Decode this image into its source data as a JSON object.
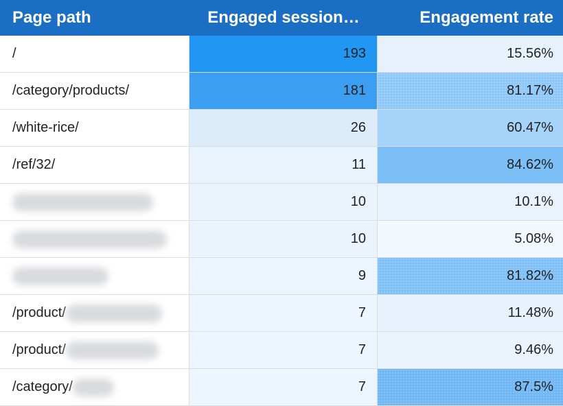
{
  "table": {
    "headers": {
      "page_path": "Page path",
      "engaged_sessions": "Engaged session…",
      "engagement_rate": "Engagement rate"
    },
    "rows": [
      {
        "path": "/",
        "sessions": "193",
        "rate": "15.56%"
      },
      {
        "path": "/category/products/",
        "sessions": "181",
        "rate": "81.17%"
      },
      {
        "path": "/white-rice/",
        "sessions": "26",
        "rate": "60.47%"
      },
      {
        "path": "/ref/32/",
        "sessions": "11",
        "rate": "84.62%"
      },
      {
        "path": "",
        "sessions": "10",
        "rate": "10.1%"
      },
      {
        "path": "",
        "sessions": "10",
        "rate": "5.08%"
      },
      {
        "path": "",
        "sessions": "9",
        "rate": "81.82%"
      },
      {
        "path": "/product/",
        "sessions": "7",
        "rate": "11.48%"
      },
      {
        "path": "/product/",
        "sessions": "7",
        "rate": "9.46%"
      },
      {
        "path": "/category/",
        "sessions": "7",
        "rate": "87.5%"
      }
    ]
  },
  "colors": {
    "header_bg": "#1a6fc4",
    "heat_high": "#2196f3",
    "heat_low": "#f2f8fd"
  }
}
